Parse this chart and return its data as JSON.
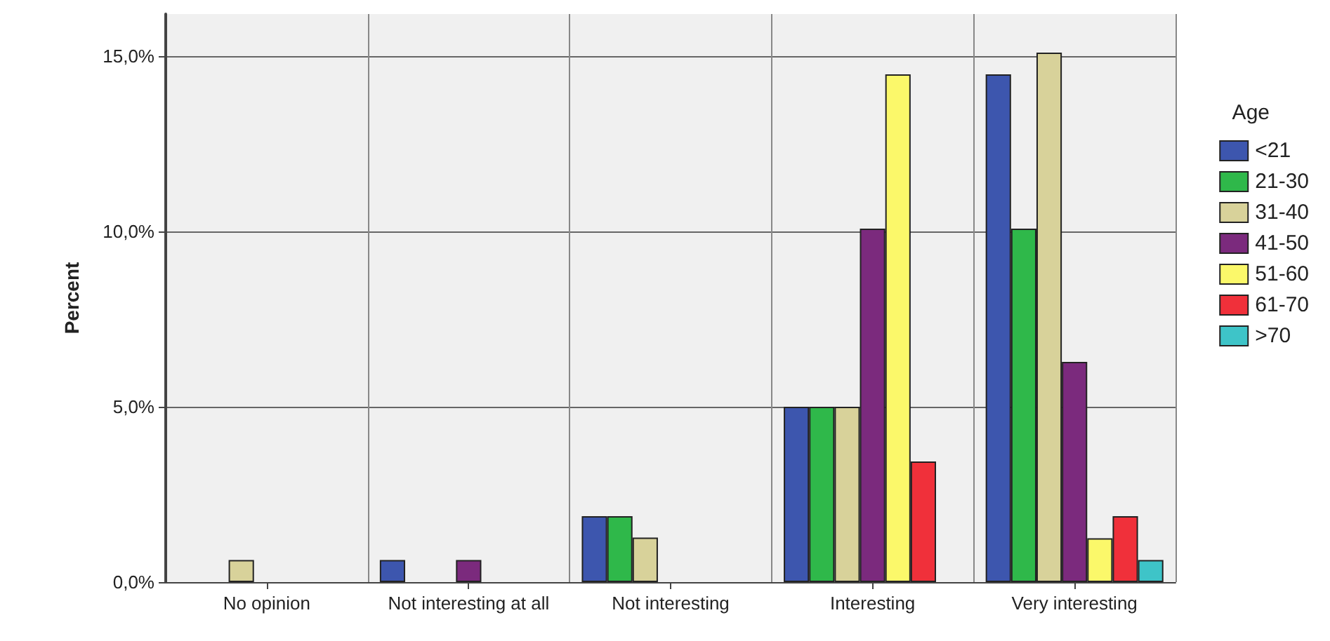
{
  "chart_data": {
    "type": "bar",
    "ylabel": "Percent",
    "legend_title": "Age",
    "categories": [
      "No opinion",
      "Not interesting at all",
      "Not interesting",
      "Interesting",
      "Very interesting"
    ],
    "series": [
      {
        "name": "<21",
        "color": "#3d56ae",
        "values": [
          null,
          0.63,
          1.88,
          5.0,
          14.48
        ]
      },
      {
        "name": "21-30",
        "color": "#2fb84a",
        "values": [
          null,
          null,
          1.88,
          5.0,
          10.08
        ]
      },
      {
        "name": "31-40",
        "color": "#d8d29a",
        "values": [
          0.63,
          null,
          1.27,
          5.0,
          15.1
        ]
      },
      {
        "name": "41-50",
        "color": "#7b2a7d",
        "values": [
          null,
          0.63,
          null,
          10.08,
          6.28
        ]
      },
      {
        "name": "51-60",
        "color": "#fbf86a",
        "values": [
          null,
          null,
          null,
          14.48,
          1.25
        ]
      },
      {
        "name": "61-70",
        "color": "#f0303a",
        "values": [
          null,
          null,
          null,
          3.44,
          1.88
        ]
      },
      {
        "name": ">70",
        "color": "#3ec4c8",
        "values": [
          null,
          null,
          null,
          null,
          0.63
        ]
      }
    ],
    "ylim": [
      0,
      16.2
    ],
    "yticks": [
      {
        "value": 0,
        "label": "0,0%"
      },
      {
        "value": 5,
        "label": "5,0%"
      },
      {
        "value": 10,
        "label": "10,0%"
      },
      {
        "value": 15,
        "label": "15,0%"
      }
    ],
    "grid": true,
    "legend": "right"
  }
}
